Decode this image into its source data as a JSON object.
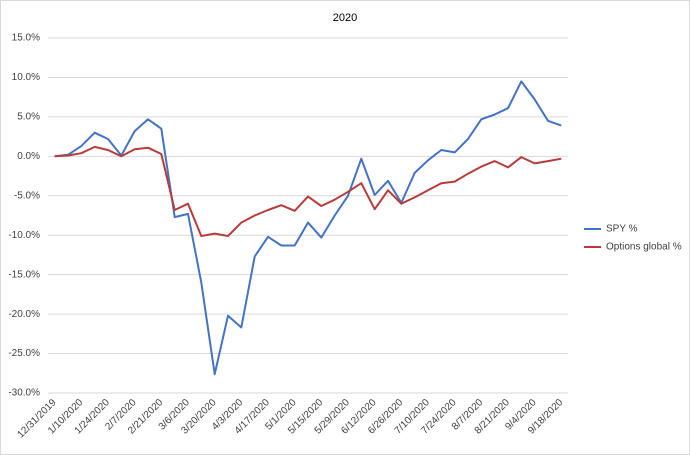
{
  "chart_data": {
    "type": "line",
    "title": "2020",
    "categories": [
      "12/31/2019",
      null,
      "1/10/2020",
      null,
      "1/24/2020",
      null,
      "2/7/2020",
      null,
      "2/21/2020",
      null,
      "3/6/2020",
      null,
      "3/20/2020",
      null,
      "4/3/2020",
      null,
      "4/17/2020",
      null,
      "5/1/2020",
      null,
      "5/15/2020",
      null,
      "5/29/2020",
      null,
      "6/12/2020",
      null,
      "6/26/2020",
      null,
      "7/10/2020",
      null,
      "7/24/2020",
      null,
      "8/7/2020",
      null,
      "8/21/2020",
      null,
      "9/4/2020",
      null,
      "9/18/2020"
    ],
    "series": [
      {
        "name": "SPY %",
        "color": "#4472c4",
        "values": [
          0,
          0.2,
          1.3,
          3.0,
          2.2,
          0.1,
          3.2,
          4.7,
          3.5,
          -7.7,
          -7.3,
          -16,
          -27.6,
          -20.2,
          -21.7,
          -12.7,
          -10.2,
          -11.3,
          -11.3,
          -8.4,
          -10.3,
          -7.5,
          -5.0,
          -0.3,
          -4.9,
          -3.1,
          -5.9,
          -2.1,
          -0.5,
          0.8,
          0.5,
          2.2,
          4.7,
          5.3,
          6.1,
          9.5,
          7.2,
          4.5,
          3.9
        ]
      },
      {
        "name": "Options global %",
        "color": "#b83b3b",
        "values": [
          0,
          0.1,
          0.4,
          1.2,
          0.8,
          0,
          0.9,
          1.1,
          0.3,
          -6.8,
          -6.0,
          -10.1,
          -9.8,
          -10.1,
          -8.4,
          -7.5,
          -6.8,
          -6.2,
          -6.9,
          -5.1,
          -6.3,
          -5.5,
          -4.5,
          -3.4,
          -6.7,
          -4.3,
          -6.0,
          -5.2,
          -4.3,
          -3.4,
          -3.2,
          -2.2,
          -1.3,
          -0.6,
          -1.4,
          -0.1,
          -0.9,
          -0.6,
          -0.3
        ]
      }
    ],
    "ylim": [
      -30,
      15
    ],
    "yticks": [
      {
        "value": -30,
        "label": "-30.0%"
      },
      {
        "value": -25,
        "label": "-25.0%"
      },
      {
        "value": -20,
        "label": "-20.0%"
      },
      {
        "value": -15,
        "label": "-15.0%"
      },
      {
        "value": -10,
        "label": "-10.0%"
      },
      {
        "value": -5,
        "label": "-5.0%"
      },
      {
        "value": 0,
        "label": "0.0%"
      },
      {
        "value": 5,
        "label": "5.0%"
      },
      {
        "value": 10,
        "label": "10.0%"
      },
      {
        "value": 15,
        "label": "15.0%"
      }
    ],
    "grid": true,
    "legend": "right"
  }
}
